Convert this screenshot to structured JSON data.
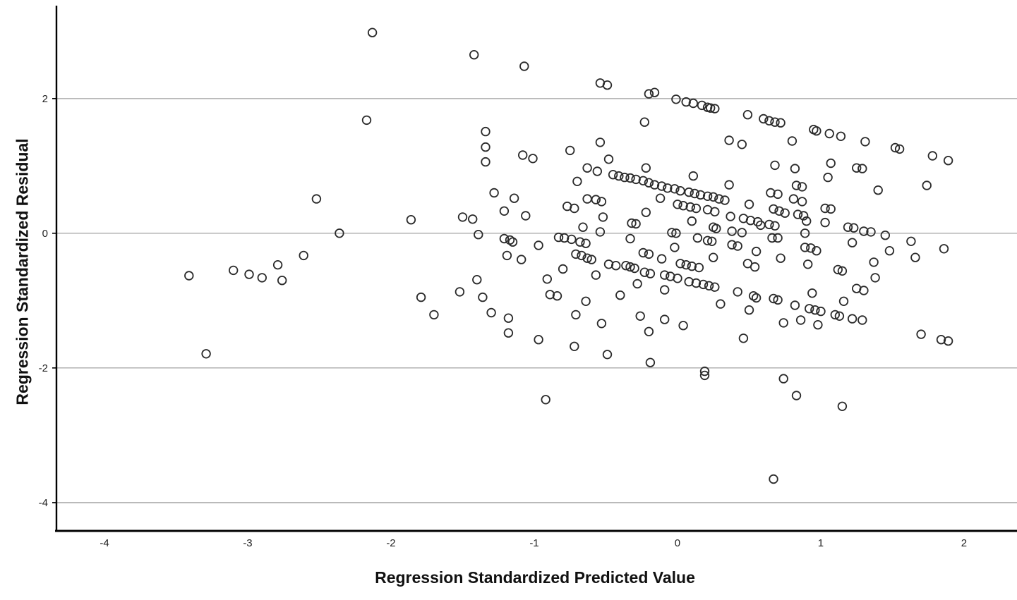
{
  "figure": {
    "background": "#ffffff",
    "axis_color": "#000000",
    "gridline_color": "#ababab",
    "marker_outline_color": "#2b2b2b"
  },
  "chart_data": {
    "type": "scatter",
    "title": "",
    "xlabel": "Regression Standardized Predicted Value",
    "ylabel": "Regression Standardized Residual",
    "xlim": [
      -4.335,
      2.345
    ],
    "ylim": [
      -4.42,
      3.38
    ],
    "x_ticks": [
      -4,
      -3,
      -2,
      -1,
      0,
      1,
      2
    ],
    "y_ticks": [
      2,
      0,
      -2,
      -4
    ],
    "grid": "horizontal",
    "legend": "none",
    "marker": "open-circle",
    "points": [
      [
        -2.13,
        2.98
      ],
      [
        -1.42,
        2.65
      ],
      [
        -1.07,
        2.48
      ],
      [
        -2.17,
        1.68
      ],
      [
        -1.34,
        1.51
      ],
      [
        -1.34,
        1.28
      ],
      [
        -1.34,
        1.06
      ],
      [
        -1.08,
        1.16
      ],
      [
        -1.01,
        1.11
      ],
      [
        -0.54,
        2.23
      ],
      [
        -0.49,
        2.2
      ],
      [
        -0.2,
        2.07
      ],
      [
        -0.16,
        2.09
      ],
      [
        -0.01,
        1.99
      ],
      [
        0.06,
        1.95
      ],
      [
        0.11,
        1.93
      ],
      [
        0.17,
        1.9
      ],
      [
        0.21,
        1.87
      ],
      [
        0.23,
        1.86
      ],
      [
        0.26,
        1.85
      ],
      [
        0.49,
        1.76
      ],
      [
        0.6,
        1.7
      ],
      [
        0.64,
        1.67
      ],
      [
        0.68,
        1.65
      ],
      [
        0.72,
        1.64
      ],
      [
        -0.23,
        1.65
      ],
      [
        -0.54,
        1.35
      ],
      [
        -0.75,
        1.23
      ],
      [
        -0.48,
        1.1
      ],
      [
        0.36,
        1.38
      ],
      [
        0.45,
        1.32
      ],
      [
        0.68,
        1.01
      ],
      [
        -0.63,
        0.97
      ],
      [
        -0.56,
        0.92
      ],
      [
        -0.22,
        0.97
      ],
      [
        0.11,
        0.85
      ],
      [
        0.95,
        1.54
      ],
      [
        0.97,
        1.52
      ],
      [
        1.06,
        1.48
      ],
      [
        1.14,
        1.44
      ],
      [
        0.8,
        1.37
      ],
      [
        1.31,
        1.36
      ],
      [
        1.52,
        1.27
      ],
      [
        1.55,
        1.25
      ],
      [
        1.78,
        1.15
      ],
      [
        1.89,
        1.08
      ],
      [
        0.82,
        0.96
      ],
      [
        1.07,
        1.04
      ],
      [
        1.25,
        0.97
      ],
      [
        1.29,
        0.96
      ],
      [
        1.05,
        0.83
      ],
      [
        -0.7,
        0.77
      ],
      [
        -0.45,
        0.87
      ],
      [
        -0.41,
        0.85
      ],
      [
        -0.37,
        0.83
      ],
      [
        -0.33,
        0.82
      ],
      [
        -0.29,
        0.8
      ],
      [
        -0.24,
        0.78
      ],
      [
        -0.2,
        0.75
      ],
      [
        -0.16,
        0.72
      ],
      [
        -0.11,
        0.7
      ],
      [
        -0.07,
        0.67
      ],
      [
        -0.02,
        0.66
      ],
      [
        0.02,
        0.63
      ],
      [
        0.08,
        0.61
      ],
      [
        0.12,
        0.59
      ],
      [
        0.16,
        0.57
      ],
      [
        0.21,
        0.55
      ],
      [
        0.25,
        0.54
      ],
      [
        0.29,
        0.51
      ],
      [
        0.33,
        0.49
      ],
      [
        0.36,
        0.72
      ],
      [
        0.65,
        0.6
      ],
      [
        0.7,
        0.58
      ],
      [
        0.83,
        0.71
      ],
      [
        0.87,
        0.69
      ],
      [
        1.4,
        0.64
      ],
      [
        1.74,
        0.71
      ],
      [
        0.81,
        0.51
      ],
      [
        0.87,
        0.47
      ],
      [
        -0.63,
        0.51
      ],
      [
        -0.57,
        0.5
      ],
      [
        -0.53,
        0.47
      ],
      [
        -0.77,
        0.4
      ],
      [
        -0.72,
        0.37
      ],
      [
        -0.12,
        0.52
      ],
      [
        0.0,
        0.43
      ],
      [
        0.04,
        0.41
      ],
      [
        0.09,
        0.39
      ],
      [
        0.13,
        0.37
      ],
      [
        0.21,
        0.35
      ],
      [
        0.26,
        0.32
      ],
      [
        0.5,
        0.43
      ],
      [
        0.37,
        0.25
      ],
      [
        0.46,
        0.22
      ],
      [
        0.51,
        0.19
      ],
      [
        0.56,
        0.17
      ],
      [
        0.67,
        0.36
      ],
      [
        0.71,
        0.33
      ],
      [
        0.75,
        0.3
      ],
      [
        0.84,
        0.28
      ],
      [
        0.88,
        0.26
      ],
      [
        0.9,
        0.18
      ],
      [
        1.03,
        0.37
      ],
      [
        1.07,
        0.36
      ],
      [
        1.03,
        0.16
      ],
      [
        -0.22,
        0.31
      ],
      [
        -0.52,
        0.24
      ],
      [
        -0.66,
        0.09
      ],
      [
        -0.54,
        0.02
      ],
      [
        -0.32,
        0.15
      ],
      [
        -0.29,
        0.14
      ],
      [
        0.1,
        0.18
      ],
      [
        -0.04,
        0.01
      ],
      [
        -0.01,
        0.0
      ],
      [
        0.25,
        0.09
      ],
      [
        0.27,
        0.07
      ],
      [
        0.38,
        0.03
      ],
      [
        0.45,
        0.01
      ],
      [
        0.58,
        0.12
      ],
      [
        0.64,
        0.13
      ],
      [
        0.68,
        0.11
      ],
      [
        0.89,
        0.0
      ],
      [
        1.19,
        0.09
      ],
      [
        1.23,
        0.08
      ],
      [
        1.3,
        0.03
      ],
      [
        1.35,
        0.02
      ],
      [
        -2.52,
        0.51
      ],
      [
        -2.36,
        0.0
      ],
      [
        -1.86,
        0.2
      ],
      [
        -2.61,
        -0.33
      ],
      [
        -3.41,
        -0.63
      ],
      [
        -3.1,
        -0.55
      ],
      [
        -2.99,
        -0.61
      ],
      [
        -2.9,
        -0.66
      ],
      [
        -2.79,
        -0.47
      ],
      [
        -2.76,
        -0.7
      ],
      [
        -1.5,
        0.24
      ],
      [
        -1.43,
        0.21
      ],
      [
        -1.39,
        -0.02
      ],
      [
        -1.28,
        0.6
      ],
      [
        -1.14,
        0.52
      ],
      [
        -1.21,
        0.33
      ],
      [
        -1.06,
        0.26
      ],
      [
        -1.21,
        -0.08
      ],
      [
        -1.17,
        -0.1
      ],
      [
        -1.15,
        -0.13
      ],
      [
        -0.97,
        -0.18
      ],
      [
        -1.19,
        -0.33
      ],
      [
        -1.09,
        -0.39
      ],
      [
        -1.4,
        -0.69
      ],
      [
        -1.52,
        -0.87
      ],
      [
        -1.36,
        -0.95
      ],
      [
        -1.79,
        -0.95
      ],
      [
        -1.7,
        -1.21
      ],
      [
        -1.3,
        -1.18
      ],
      [
        -1.18,
        -1.26
      ],
      [
        -1.18,
        -1.48
      ],
      [
        -0.97,
        -1.58
      ],
      [
        -0.83,
        -0.06
      ],
      [
        -0.79,
        -0.07
      ],
      [
        -0.74,
        -0.09
      ],
      [
        -0.68,
        -0.13
      ],
      [
        -0.64,
        -0.15
      ],
      [
        -0.33,
        -0.08
      ],
      [
        -0.71,
        -0.31
      ],
      [
        -0.67,
        -0.33
      ],
      [
        -0.63,
        -0.37
      ],
      [
        -0.6,
        -0.39
      ],
      [
        -0.24,
        -0.29
      ],
      [
        -0.2,
        -0.31
      ],
      [
        -0.11,
        -0.38
      ],
      [
        -0.48,
        -0.46
      ],
      [
        -0.43,
        -0.48
      ],
      [
        -0.36,
        -0.48
      ],
      [
        -0.33,
        -0.5
      ],
      [
        -0.3,
        -0.52
      ],
      [
        -0.8,
        -0.53
      ],
      [
        -0.23,
        -0.58
      ],
      [
        -0.19,
        -0.6
      ],
      [
        -0.57,
        -0.62
      ],
      [
        -0.91,
        -0.68
      ],
      [
        -0.28,
        -0.75
      ],
      [
        -0.89,
        -0.91
      ],
      [
        -0.84,
        -0.93
      ],
      [
        -0.4,
        -0.92
      ],
      [
        -0.64,
        -1.01
      ],
      [
        -0.09,
        -0.84
      ],
      [
        -0.02,
        -0.21
      ],
      [
        0.14,
        -0.07
      ],
      [
        0.21,
        -0.11
      ],
      [
        0.24,
        -0.12
      ],
      [
        0.38,
        -0.17
      ],
      [
        0.42,
        -0.19
      ],
      [
        0.55,
        -0.27
      ],
      [
        0.66,
        -0.07
      ],
      [
        0.7,
        -0.07
      ],
      [
        0.25,
        -0.36
      ],
      [
        0.02,
        -0.45
      ],
      [
        0.06,
        -0.47
      ],
      [
        0.1,
        -0.49
      ],
      [
        0.15,
        -0.51
      ],
      [
        0.49,
        -0.45
      ],
      [
        0.54,
        -0.5
      ],
      [
        -0.09,
        -0.62
      ],
      [
        -0.05,
        -0.64
      ],
      [
        0.0,
        -0.67
      ],
      [
        0.08,
        -0.72
      ],
      [
        0.13,
        -0.74
      ],
      [
        0.18,
        -0.76
      ],
      [
        0.22,
        -0.78
      ],
      [
        0.26,
        -0.8
      ],
      [
        0.42,
        -0.87
      ],
      [
        0.53,
        -0.93
      ],
      [
        0.55,
        -0.96
      ],
      [
        0.67,
        -0.97
      ],
      [
        0.7,
        -0.99
      ],
      [
        0.3,
        -1.05
      ],
      [
        0.5,
        -1.14
      ],
      [
        -0.09,
        -1.28
      ],
      [
        0.04,
        -1.37
      ],
      [
        0.46,
        -1.56
      ],
      [
        0.74,
        -1.33
      ],
      [
        -0.72,
        -1.68
      ],
      [
        -0.49,
        -1.8
      ],
      [
        -0.71,
        -1.21
      ],
      [
        -0.53,
        -1.34
      ],
      [
        -0.26,
        -1.23
      ],
      [
        -0.2,
        -1.46
      ],
      [
        0.72,
        -0.37
      ],
      [
        0.91,
        -0.46
      ],
      [
        0.89,
        -0.21
      ],
      [
        0.93,
        -0.22
      ],
      [
        0.97,
        -0.26
      ],
      [
        1.22,
        -0.14
      ],
      [
        1.45,
        -0.03
      ],
      [
        1.63,
        -0.12
      ],
      [
        1.86,
        -0.23
      ],
      [
        1.48,
        -0.26
      ],
      [
        1.66,
        -0.36
      ],
      [
        1.37,
        -0.43
      ],
      [
        1.12,
        -0.54
      ],
      [
        1.15,
        -0.56
      ],
      [
        1.38,
        -0.66
      ],
      [
        1.25,
        -0.82
      ],
      [
        1.3,
        -0.85
      ],
      [
        0.94,
        -0.89
      ],
      [
        0.82,
        -1.07
      ],
      [
        1.16,
        -1.01
      ],
      [
        0.92,
        -1.12
      ],
      [
        0.96,
        -1.14
      ],
      [
        1.0,
        -1.16
      ],
      [
        1.1,
        -1.21
      ],
      [
        1.13,
        -1.23
      ],
      [
        0.86,
        -1.29
      ],
      [
        0.98,
        -1.36
      ],
      [
        1.22,
        -1.27
      ],
      [
        1.29,
        -1.29
      ],
      [
        1.7,
        -1.5
      ],
      [
        1.84,
        -1.58
      ],
      [
        1.89,
        -1.6
      ],
      [
        -3.29,
        -1.79
      ],
      [
        -0.92,
        -2.47
      ],
      [
        -0.19,
        -1.92
      ],
      [
        0.19,
        -2.05
      ],
      [
        0.19,
        -2.11
      ],
      [
        0.74,
        -2.16
      ],
      [
        0.83,
        -2.41
      ],
      [
        1.15,
        -2.57
      ],
      [
        0.67,
        -3.65
      ]
    ]
  }
}
